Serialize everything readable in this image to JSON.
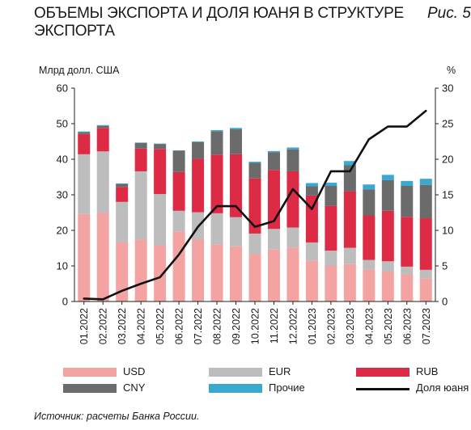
{
  "title": "ОБЪЕМЫ ЭКСПОРТА И ДОЛЯ ЮАНЯ В СТРУКТУРЕ ЭКСПОРТА",
  "figure_label": "Рис. 5",
  "source": "Источник: расчеты Банка России.",
  "chart_data": {
    "type": "bar",
    "stacked": true,
    "categories": [
      "01.2022",
      "02.2022",
      "03.2022",
      "04.2022",
      "05.2022",
      "06.2022",
      "07.2022",
      "08.2022",
      "09.2022",
      "10.2022",
      "11.2022",
      "12.2022",
      "01.2023",
      "02.2023",
      "03.2023",
      "04.2023",
      "05.2023",
      "06.2023",
      "07.2023"
    ],
    "ylabel": "Млрд долл. США",
    "y2label": "%",
    "ylim": [
      0,
      60
    ],
    "y2lim": [
      0,
      30
    ],
    "yticks": [
      "0",
      "10",
      "20",
      "30",
      "40",
      "50",
      "60"
    ],
    "y2ticks": [
      "0",
      "5",
      "10",
      "15",
      "20",
      "25",
      "30"
    ],
    "grid": false,
    "legend_position": "bottom",
    "series": [
      {
        "name": "USD",
        "color": "#f4a3a3",
        "values": [
          24.6,
          25,
          16.7,
          17.4,
          15.8,
          19.7,
          17.5,
          16,
          15.5,
          13.3,
          14.6,
          15.2,
          11.5,
          10,
          10.5,
          9,
          8.4,
          7.6,
          6.5
        ]
      },
      {
        "name": "EUR",
        "color": "#bdbdbd",
        "values": [
          16.8,
          17.2,
          11.3,
          19.2,
          14.4,
          5.8,
          7.6,
          8.8,
          8.2,
          5.8,
          5.8,
          5.6,
          5.1,
          4.3,
          4.6,
          2.7,
          2.9,
          2.2,
          2.4
        ]
      },
      {
        "name": "RUB",
        "color": "#dd2a45",
        "values": [
          5.7,
          6.6,
          4.2,
          6.4,
          12.7,
          10.9,
          15,
          16.5,
          17.7,
          15.5,
          16.6,
          15.8,
          13.2,
          12.6,
          15.9,
          12.5,
          14.2,
          14,
          14.5
        ]
      },
      {
        "name": "CNY",
        "color": "#6b6b6b",
        "values": [
          0.5,
          0.6,
          0.9,
          1.6,
          1.4,
          6,
          4.7,
          6.6,
          7,
          4.4,
          5,
          6.2,
          2.6,
          5.6,
          7.3,
          7.3,
          8.6,
          8.7,
          9.4
        ]
      },
      {
        "name": "Прочие",
        "color": "#3aa9d0",
        "values": [
          0.2,
          0.2,
          0.1,
          0.1,
          0.1,
          0.1,
          0.2,
          0.3,
          0.4,
          0.3,
          0.3,
          0.5,
          0.9,
          0.9,
          1.2,
          1.4,
          1.5,
          1.4,
          1.7
        ]
      }
    ],
    "line": {
      "name": "Доля юаня",
      "color": "#111111",
      "axis": "right",
      "values": [
        0.4,
        0.3,
        1.5,
        2.5,
        3.4,
        6.6,
        10.5,
        13.4,
        13.4,
        10.5,
        11.3,
        15.8,
        13,
        18.3,
        18.3,
        22.8,
        24.6,
        24.6,
        26.8
      ]
    }
  },
  "legend": {
    "usd": "USD",
    "eur": "EUR",
    "rub": "RUB",
    "cny": "CNY",
    "other": "Прочие",
    "line": "Доля юаня"
  }
}
